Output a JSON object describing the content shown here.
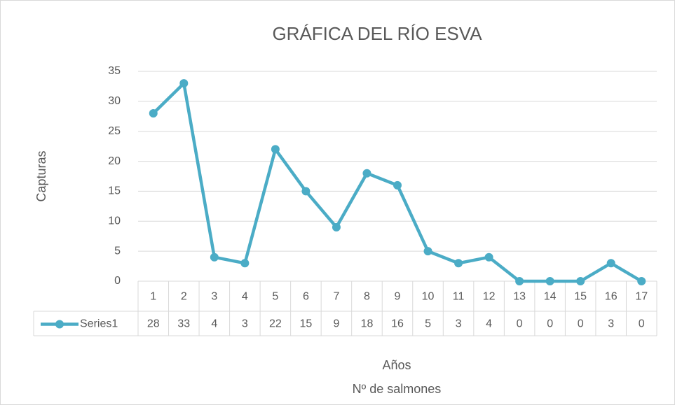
{
  "chart_data": {
    "type": "line",
    "title": "GRÁFICA DEL RÍO ESVA",
    "ylabel": "Capturas",
    "xlabel_lines": [
      "Años",
      "Nº de salmones"
    ],
    "categories": [
      "1",
      "2",
      "3",
      "4",
      "5",
      "6",
      "7",
      "8",
      "9",
      "10",
      "11",
      "12",
      "13",
      "14",
      "15",
      "16",
      "17"
    ],
    "series": [
      {
        "name": "Series1",
        "color": "#4bacc6",
        "values": [
          28,
          33,
          4,
          3,
          22,
          15,
          9,
          18,
          16,
          5,
          3,
          4,
          0,
          0,
          0,
          3,
          0
        ]
      }
    ],
    "ylim": [
      0,
      35
    ],
    "yticks": [
      0,
      5,
      10,
      15,
      20,
      25,
      30,
      35
    ],
    "grid": true,
    "data_table": true
  }
}
